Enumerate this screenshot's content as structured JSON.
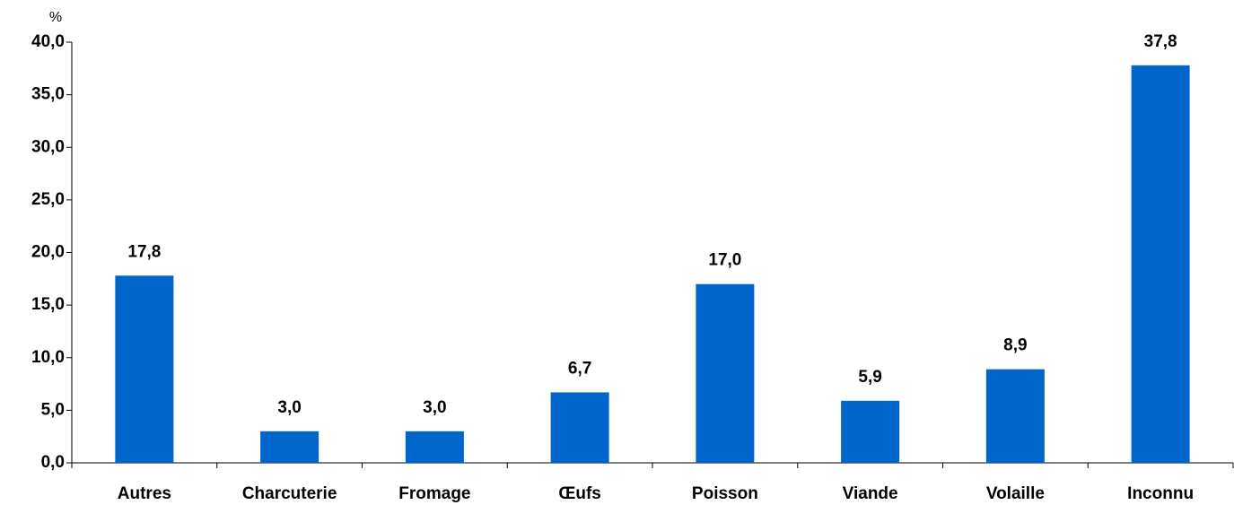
{
  "chart_data": {
    "type": "bar",
    "y_label": "%",
    "categories": [
      "Autres",
      "Charcuterie",
      "Fromage",
      "Œufs",
      "Poisson",
      "Viande",
      "Volaille",
      "Inconnu"
    ],
    "values": [
      17.8,
      3.0,
      3.0,
      6.7,
      17.0,
      5.9,
      8.9,
      37.8
    ],
    "value_labels": [
      "17,8",
      "3,0",
      "3,0",
      "6,7",
      "17,0",
      "5,9",
      "8,9",
      "37,8"
    ],
    "color": "#0066cc",
    "ylim": [
      0,
      40
    ],
    "yticks": [
      {
        "value": 0,
        "label": "0,0"
      },
      {
        "value": 5,
        "label": "5,0"
      },
      {
        "value": 10,
        "label": "10,0"
      },
      {
        "value": 15,
        "label": "15,0"
      },
      {
        "value": 20,
        "label": "20,0"
      },
      {
        "value": 25,
        "label": "25,0"
      },
      {
        "value": 30,
        "label": "30,0"
      },
      {
        "value": 35,
        "label": "35,0"
      },
      {
        "value": 40,
        "label": "40,0"
      }
    ],
    "grid": false
  }
}
